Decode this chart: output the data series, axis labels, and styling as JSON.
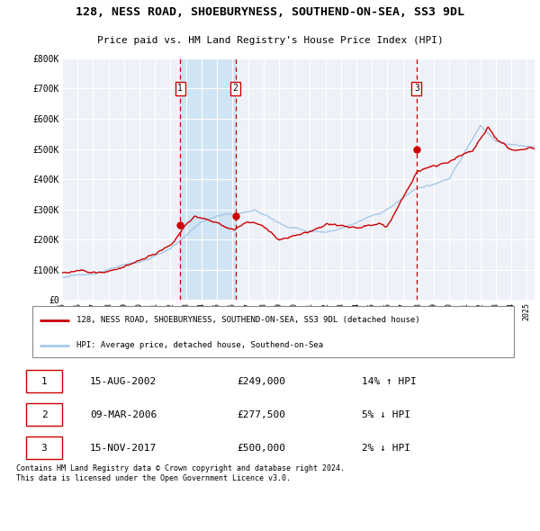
{
  "title": "128, NESS ROAD, SHOEBURYNESS, SOUTHEND-ON-SEA, SS3 9DL",
  "subtitle": "Price paid vs. HM Land Registry's House Price Index (HPI)",
  "ylabel_ticks": [
    "£0",
    "£100K",
    "£200K",
    "£300K",
    "£400K",
    "£500K",
    "£600K",
    "£700K",
    "£800K"
  ],
  "ytick_values": [
    0,
    100000,
    200000,
    300000,
    400000,
    500000,
    600000,
    700000,
    800000
  ],
  "ylim": [
    0,
    800000
  ],
  "xlim_start": 1995.0,
  "xlim_end": 2025.5,
  "xtick_years": [
    1995,
    1996,
    1997,
    1998,
    1999,
    2000,
    2001,
    2002,
    2003,
    2004,
    2005,
    2006,
    2007,
    2008,
    2009,
    2010,
    2011,
    2012,
    2013,
    2014,
    2015,
    2016,
    2017,
    2018,
    2019,
    2020,
    2021,
    2022,
    2023,
    2024,
    2025
  ],
  "sale_color": "#cc0000",
  "hpi_color": "#a8c8e8",
  "span_color": "#d0e4f4",
  "background_color": "#ffffff",
  "plot_bg_color": "#eef2f8",
  "grid_color": "#ffffff",
  "sale_label": "128, NESS ROAD, SHOEBURYNESS, SOUTHEND-ON-SEA, SS3 9DL (detached house)",
  "hpi_label": "HPI: Average price, detached house, Southend-on-Sea",
  "transactions": [
    {
      "num": 1,
      "date_dec": 2002.62,
      "price": 249000,
      "date_str": "15-AUG-2002",
      "pct": "14%",
      "dir": "↑"
    },
    {
      "num": 2,
      "date_dec": 2006.19,
      "price": 277500,
      "date_str": "09-MAR-2006",
      "pct": "5%",
      "dir": "↓"
    },
    {
      "num": 3,
      "date_dec": 2017.88,
      "price": 500000,
      "date_str": "15-NOV-2017",
      "pct": "2%",
      "dir": "↓"
    }
  ],
  "footer": "Contains HM Land Registry data © Crown copyright and database right 2024.\nThis data is licensed under the Open Government Licence v3.0."
}
